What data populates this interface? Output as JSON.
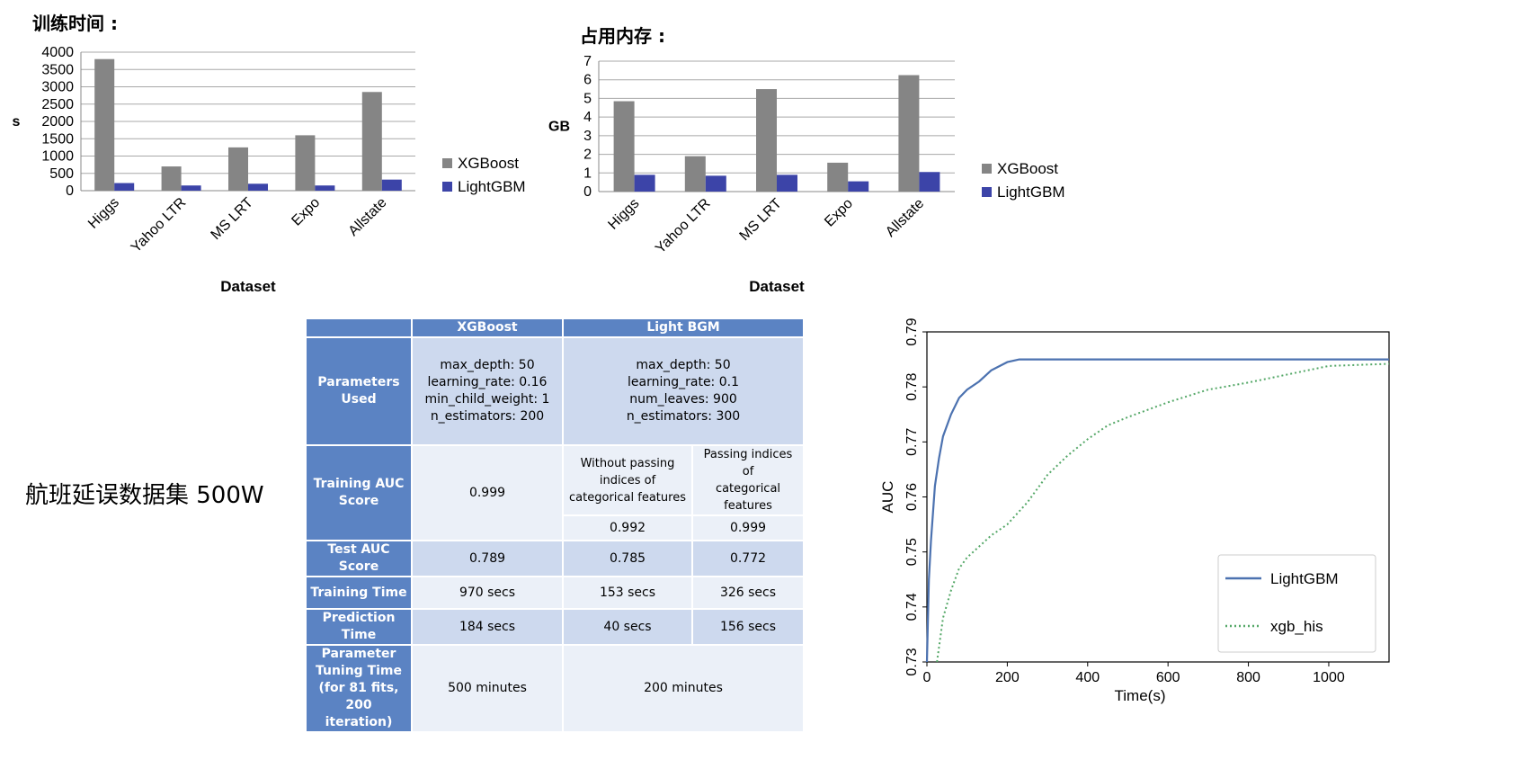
{
  "chart_data": [
    {
      "type": "bar",
      "title": "训练时间 :",
      "xlabel": "Dataset",
      "ylabel": "s",
      "categories": [
        "Higgs",
        "Yahoo LTR",
        "MS LRT",
        "Expo",
        "Allstate"
      ],
      "series": [
        {
          "name": "XGBoost",
          "values": [
            3800,
            700,
            1250,
            1600,
            2850
          ]
        },
        {
          "name": "LightGBM",
          "values": [
            220,
            150,
            200,
            150,
            320
          ]
        }
      ],
      "ylim": [
        0,
        4000
      ],
      "yticks": [
        0,
        500,
        1000,
        1500,
        2000,
        2500,
        3000,
        3500,
        4000
      ],
      "grid": true,
      "legend": "right",
      "colors": [
        "#858585",
        "#3c44a8"
      ]
    },
    {
      "type": "bar",
      "title": "占用内存 :",
      "xlabel": "Dataset",
      "ylabel": "GB",
      "categories": [
        "Higgs",
        "Yahoo LTR",
        "MS LRT",
        "Expo",
        "Allstate"
      ],
      "series": [
        {
          "name": "XGBoost",
          "values": [
            4.85,
            1.9,
            5.5,
            1.55,
            6.25
          ]
        },
        {
          "name": "LightGBM",
          "values": [
            0.9,
            0.85,
            0.9,
            0.55,
            1.05
          ]
        }
      ],
      "ylim": [
        0,
        7
      ],
      "yticks": [
        0,
        1,
        2,
        3,
        4,
        5,
        6,
        7
      ],
      "grid": true,
      "legend": "right",
      "colors": [
        "#858585",
        "#3c44a8"
      ]
    },
    {
      "type": "line",
      "xlabel": "Time(s)",
      "ylabel": "AUC",
      "xlim": [
        0,
        1150
      ],
      "ylim": [
        0.73,
        0.79
      ],
      "xticks": [
        0,
        200,
        400,
        600,
        800,
        1000
      ],
      "yticks": [
        0.73,
        0.74,
        0.75,
        0.76,
        0.77,
        0.78,
        0.79
      ],
      "legend": "bottom-right",
      "series": [
        {
          "name": "LightGBM",
          "color": "#4c72b0",
          "style": "solid",
          "x": [
            0,
            5,
            10,
            20,
            30,
            40,
            60,
            80,
            100,
            130,
            160,
            200,
            230,
            300,
            500,
            800,
            1150
          ],
          "y": [
            0.73,
            0.745,
            0.752,
            0.762,
            0.767,
            0.771,
            0.775,
            0.778,
            0.7795,
            0.781,
            0.783,
            0.7845,
            0.785,
            0.785,
            0.785,
            0.785,
            0.785
          ]
        },
        {
          "name": "xgb_his",
          "color": "#55a868",
          "style": "dotted",
          "x": [
            25,
            40,
            60,
            80,
            100,
            130,
            160,
            200,
            250,
            300,
            350,
            400,
            450,
            500,
            600,
            700,
            800,
            900,
            1000,
            1150
          ],
          "y": [
            0.73,
            0.738,
            0.743,
            0.747,
            0.749,
            0.751,
            0.753,
            0.755,
            0.759,
            0.764,
            0.7675,
            0.7705,
            0.773,
            0.7745,
            0.7772,
            0.7795,
            0.7808,
            0.7823,
            0.7838,
            0.7842
          ]
        }
      ]
    }
  ],
  "side_label": "航班延误数据集 500W",
  "table": {
    "headers": [
      "XGBoost",
      "Light BGM"
    ],
    "rows": [
      {
        "label": "Parameters\nUsed",
        "xgb": "max_depth: 50\nlearning_rate: 0.16\nmin_child_weight: 1\nn_estimators:  200",
        "lgb": "max_depth: 50\nlearning_rate:  0.1\nnum_leaves: 900\nn_estimators:  300"
      },
      {
        "label": "Training AUC\nScore",
        "xgb": "0.999",
        "lgb_sub1_header": "Without passing\nindices of\ncategorical features",
        "lgb_sub2_header": "Passing indices of\ncategorical features",
        "lgb1": "0.992",
        "lgb2": "0.999"
      },
      {
        "label": "Test AUC\nScore",
        "xgb": "0.789",
        "lgb1": "0.785",
        "lgb2": "0.772"
      },
      {
        "label": "Training Time",
        "xgb": "970 secs",
        "lgb1": "153 secs",
        "lgb2": "326 secs"
      },
      {
        "label": "Prediction\nTime",
        "xgb": "184 secs",
        "lgb1": "40 secs",
        "lgb2": "156 secs"
      },
      {
        "label": "Parameter\nTuning Time\n(for 81 fits,\n200 iteration)",
        "xgb": "500 minutes",
        "lgb": "200 minutes"
      }
    ]
  }
}
